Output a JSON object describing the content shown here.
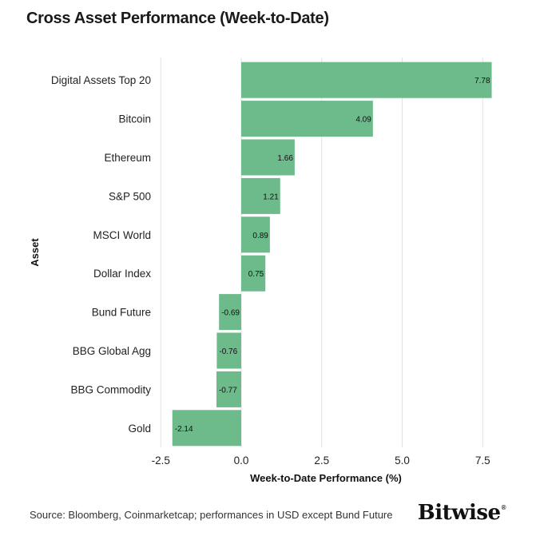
{
  "title": "Cross Asset Performance (Week-to-Date)",
  "source": "Source: Bloomberg, Coinmarketcap; performances in USD except Bund Future",
  "brand": {
    "name": "Bitwise",
    "mark": "®"
  },
  "colors": {
    "bar": "#6dba8a",
    "grid": "#e2e2e2",
    "text": "#1a1a1a"
  },
  "chart_data": {
    "type": "bar",
    "orientation": "horizontal",
    "categories": [
      "Digital Assets Top 20",
      "Bitcoin",
      "Ethereum",
      "S&P 500",
      "MSCI World",
      "Dollar Index",
      "Bund Future",
      "BBG Global Agg",
      "BBG Commodity",
      "Gold"
    ],
    "values": [
      7.78,
      4.09,
      1.66,
      1.21,
      0.89,
      0.75,
      -0.69,
      -0.76,
      -0.77,
      -2.14
    ],
    "labels": [
      "7.78",
      "4.09",
      "1.66",
      "1.21",
      "0.89",
      "0.75",
      "-0.69",
      "-0.76",
      "-0.77",
      "-2.14"
    ],
    "xlabel": "Week-to-Date Performance (%)",
    "ylabel": "Asset",
    "xlim": [
      -2.5,
      7.78
    ],
    "xticks": [
      -2.5,
      0.0,
      2.5,
      5.0,
      7.5
    ],
    "xtick_labels": [
      "-2.5",
      "0.0",
      "2.5",
      "5.0",
      "7.5"
    ],
    "grid": "vertical"
  }
}
